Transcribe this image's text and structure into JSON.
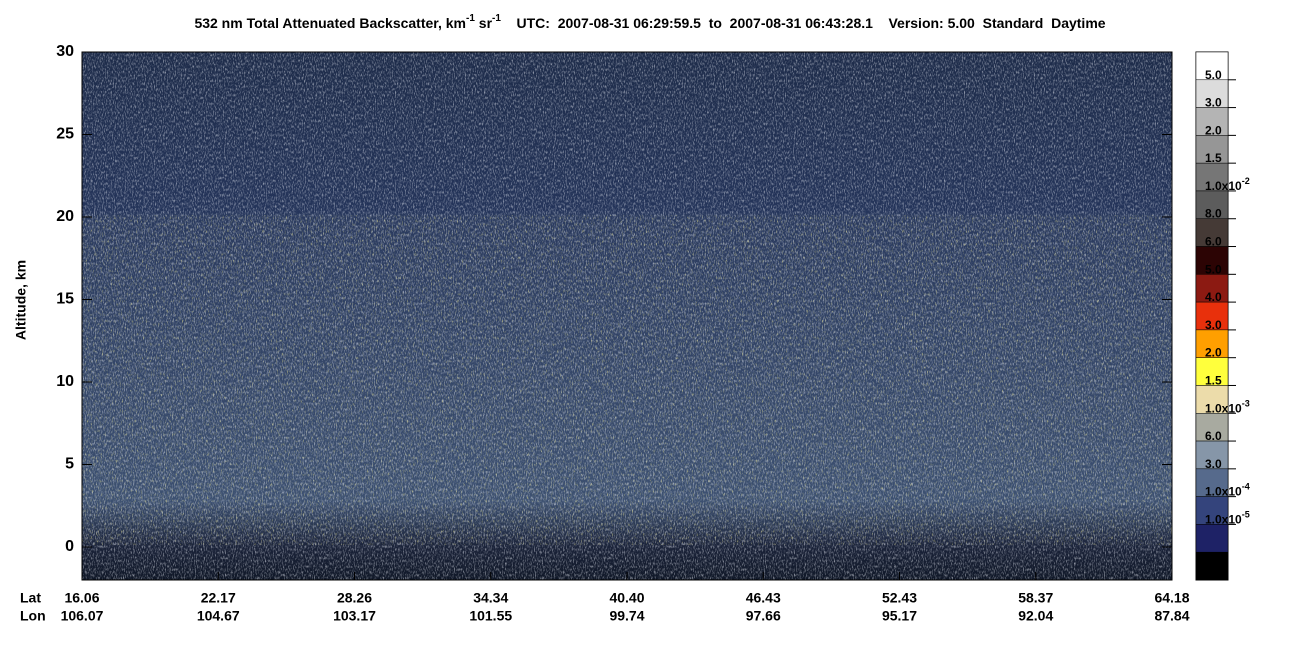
{
  "chart_data": {
    "type": "image",
    "title_parts": [
      {
        "text": "532 nm Total Attenuated Backscatter, km"
      },
      {
        "sup": "-1"
      },
      {
        "text": " sr"
      },
      {
        "sup": "-1"
      },
      {
        "text": "    UTC:  2007-08-31 06:29:59.5  to  2007-08-31 06:43:28.1    Version: 5.00  Standard  Daytime"
      }
    ],
    "y_label": "Altitude, km",
    "ylim": [
      -2,
      30
    ],
    "yticks": [
      0,
      5,
      10,
      15,
      20,
      25,
      30
    ],
    "x_row_labels": [
      "Lat",
      "Lon"
    ],
    "categories": [
      "16.06",
      "22.17",
      "28.26",
      "34.34",
      "40.40",
      "46.43",
      "52.43",
      "58.37",
      "64.18"
    ],
    "lon": [
      "106.07",
      "104.67",
      "103.17",
      "101.55",
      "99.74",
      "97.66",
      "95.17",
      "92.04",
      "87.84"
    ],
    "colorbar": {
      "colors": [
        "#ffffff",
        "#dcdcdc",
        "#b4b4b4",
        "#969696",
        "#767676",
        "#5c5c5c",
        "#453a36",
        "#2c0404",
        "#8c1a12",
        "#e8300c",
        "#ff9f00",
        "#ffff3c",
        "#ecdcaa",
        "#a8aaa0",
        "#8696a8",
        "#566a8c",
        "#34447c",
        "#1e2266",
        "#000000"
      ],
      "labels": [
        {
          "text": "5.0"
        },
        {
          "text": "3.0"
        },
        {
          "text": "2.0"
        },
        {
          "text": "1.5"
        },
        {
          "text": "1.0x10",
          "sup": "-2"
        },
        {
          "text": "8.0"
        },
        {
          "text": "6.0"
        },
        {
          "text": "5.0"
        },
        {
          "text": "4.0"
        },
        {
          "text": "3.0"
        },
        {
          "text": "2.0"
        },
        {
          "text": "1.5"
        },
        {
          "text": "1.0x10",
          "sup": "-3"
        },
        {
          "text": "6.0"
        },
        {
          "text": "3.0"
        },
        {
          "text": "1.0x10",
          "sup": "-4"
        },
        {
          "text": "1.0x10",
          "sup": "-5"
        }
      ]
    }
  }
}
